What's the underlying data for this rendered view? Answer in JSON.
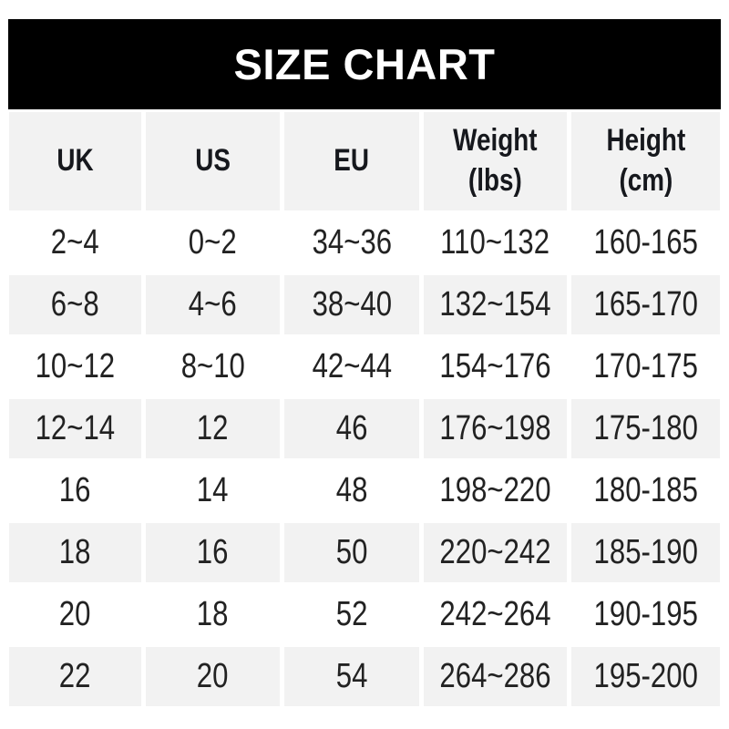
{
  "title": "SIZE CHART",
  "colors": {
    "banner_bg": "#000000",
    "banner_text": "#ffffff",
    "row_alt_bg": "#f2f2f2",
    "text": "#222222"
  },
  "table": {
    "headers": [
      "UK",
      "US",
      "EU",
      "Weight\n(lbs)",
      "Height\n(cm)"
    ],
    "rows": [
      [
        "2~4",
        "0~2",
        "34~36",
        "110~132",
        "160-165"
      ],
      [
        "6~8",
        "4~6",
        "38~40",
        "132~154",
        "165-170"
      ],
      [
        "10~12",
        "8~10",
        "42~44",
        "154~176",
        "170-175"
      ],
      [
        "12~14",
        "12",
        "46",
        "176~198",
        "175-180"
      ],
      [
        "16",
        "14",
        "48",
        "198~220",
        "180-185"
      ],
      [
        "18",
        "16",
        "50",
        "220~242",
        "185-190"
      ],
      [
        "20",
        "18",
        "52",
        "242~264",
        "190-195"
      ],
      [
        "22",
        "20",
        "54",
        "264~286",
        "195-200"
      ]
    ]
  },
  "chart_data": {
    "type": "table",
    "title": "SIZE CHART",
    "columns": [
      "UK",
      "US",
      "EU",
      "Weight (lbs)",
      "Height (cm)"
    ],
    "rows": [
      [
        "2~4",
        "0~2",
        "34~36",
        "110~132",
        "160-165"
      ],
      [
        "6~8",
        "4~6",
        "38~40",
        "132~154",
        "165-170"
      ],
      [
        "10~12",
        "8~10",
        "42~44",
        "154~176",
        "170-175"
      ],
      [
        "12~14",
        "12",
        "46",
        "176~198",
        "175-180"
      ],
      [
        "16",
        "14",
        "48",
        "198~220",
        "180-185"
      ],
      [
        "18",
        "16",
        "50",
        "220~242",
        "185-190"
      ],
      [
        "20",
        "18",
        "52",
        "242~264",
        "190-195"
      ],
      [
        "22",
        "20",
        "54",
        "264~286",
        "195-200"
      ]
    ],
    "layout": {
      "header_background": "#f2f2f2",
      "alternating_rows": true,
      "grid": "off"
    }
  }
}
